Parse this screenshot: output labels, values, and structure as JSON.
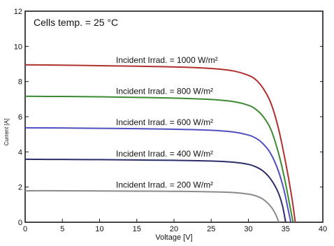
{
  "chart_data": {
    "type": "line",
    "title": "",
    "xlabel": "Voltage [V]",
    "ylabel": "Current [A]",
    "xlim": [
      0,
      40
    ],
    "ylim": [
      0,
      12
    ],
    "x_ticks": [
      0,
      5,
      10,
      15,
      20,
      25,
      30,
      35,
      40
    ],
    "y_ticks": [
      0,
      2,
      4,
      6,
      8,
      10,
      12
    ],
    "grid": false,
    "annotation_box": "Cells temp. = 25 °C",
    "series": [
      {
        "name": "Incident Irrad. = 1000 W/m²",
        "label": "Incident Irrad. = 1000 W/m²",
        "color": "#b03030",
        "x": [
          0,
          5,
          10,
          15,
          20,
          25,
          28,
          30,
          31,
          32,
          33,
          34,
          35,
          35.8,
          36.3
        ],
        "y": [
          8.95,
          8.93,
          8.9,
          8.87,
          8.83,
          8.74,
          8.6,
          8.35,
          8.1,
          7.6,
          6.8,
          5.4,
          3.4,
          1.5,
          0
        ]
      },
      {
        "name": "Incident Irrad. = 800 W/m²",
        "label": "Incident Irrad. = 800 W/m²",
        "color": "#3c8a32",
        "x": [
          0,
          5,
          10,
          15,
          20,
          25,
          28,
          30,
          31,
          32,
          33,
          34,
          34.8,
          35.5,
          36.0
        ],
        "y": [
          7.16,
          7.15,
          7.13,
          7.1,
          7.06,
          6.98,
          6.86,
          6.65,
          6.42,
          6.0,
          5.3,
          4.0,
          2.6,
          1.1,
          0
        ]
      },
      {
        "name": "Incident Irrad. = 600 W/m²",
        "label": "Incident Irrad. = 600 W/m²",
        "color": "#4e4fc0",
        "x": [
          0,
          5,
          10,
          15,
          20,
          25,
          28,
          30,
          31,
          32,
          33,
          34,
          34.8,
          35.3,
          35.7
        ],
        "y": [
          5.37,
          5.36,
          5.34,
          5.32,
          5.29,
          5.23,
          5.13,
          4.96,
          4.78,
          4.45,
          3.9,
          2.95,
          1.8,
          0.8,
          0
        ]
      },
      {
        "name": "Incident Irrad. = 400 W/m²",
        "label": "Incident Irrad. = 400 W/m²",
        "color": "#2c2e6a",
        "x": [
          0,
          5,
          10,
          15,
          20,
          25,
          28,
          30,
          31,
          32,
          33,
          34,
          34.6,
          35.0
        ],
        "y": [
          3.58,
          3.57,
          3.56,
          3.54,
          3.52,
          3.48,
          3.41,
          3.29,
          3.15,
          2.9,
          2.45,
          1.7,
          0.9,
          0
        ]
      },
      {
        "name": "Incident Irrad. = 200 W/m²",
        "label": "Incident Irrad. = 200 W/m²",
        "color": "#8a8a8a",
        "x": [
          0,
          5,
          10,
          15,
          20,
          25,
          28,
          30,
          31,
          32,
          33,
          33.6,
          34.1
        ],
        "y": [
          1.79,
          1.79,
          1.78,
          1.77,
          1.76,
          1.73,
          1.69,
          1.6,
          1.5,
          1.3,
          0.9,
          0.5,
          0
        ]
      }
    ]
  }
}
